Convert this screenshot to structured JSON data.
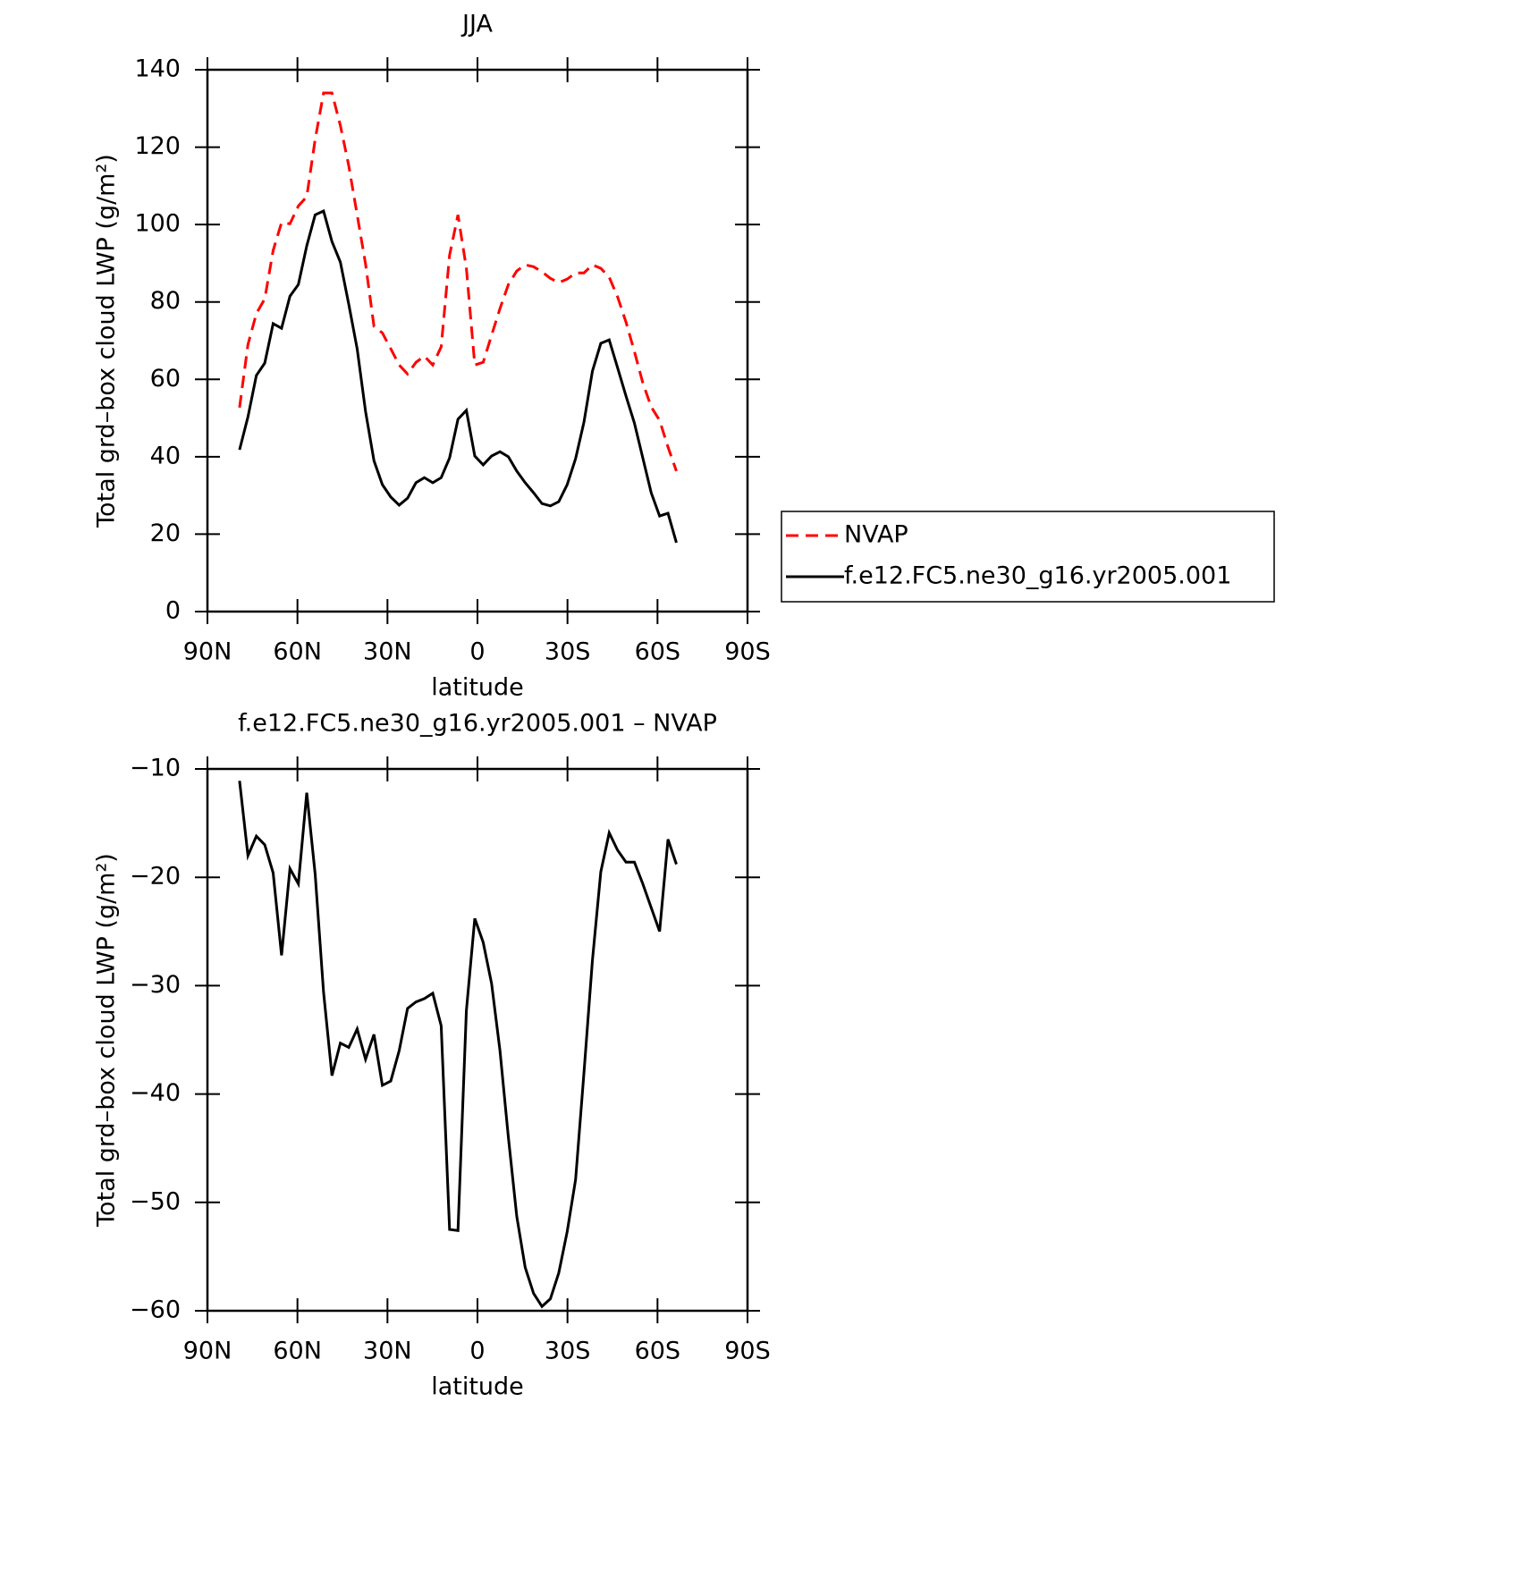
{
  "chart_data": [
    {
      "type": "line",
      "title": "JJA",
      "xlabel": "latitude",
      "ylabel": "Total grd–box cloud LWP (g/m²)",
      "x": [
        79.3,
        76.5,
        73.7,
        70.9,
        68.1,
        65.3,
        62.5,
        59.7,
        56.9,
        54.1,
        51.3,
        48.5,
        45.7,
        42.9,
        40.1,
        37.3,
        34.5,
        31.7,
        28.9,
        26.1,
        23.3,
        20.5,
        17.7,
        14.9,
        12.1,
        9.3,
        6.5,
        3.7,
        0.9,
        -1.9,
        -4.7,
        -7.5,
        -10.3,
        -13.1,
        -15.9,
        -18.7,
        -21.5,
        -24.3,
        -27.1,
        -29.9,
        -32.7,
        -35.5,
        -38.3,
        -41.1,
        -43.9,
        -46.7,
        -49.5,
        -52.3,
        -55.1,
        -57.9,
        -60.7,
        -63.5,
        -66.3
      ],
      "series": [
        {
          "name": "NVAP",
          "color": "#ff0000",
          "dash": true,
          "values": [
            52.7,
            69,
            77,
            80.8,
            93.3,
            100.5,
            100.2,
            104.8,
            107.2,
            122,
            134,
            134,
            125.6,
            115.2,
            102.5,
            89.8,
            73.7,
            72,
            67.9,
            63.7,
            61.4,
            64.4,
            66,
            63.7,
            68.4,
            92.1,
            102.5,
            88.7,
            63.7,
            64.4,
            71.4,
            78.3,
            84.5,
            88,
            89.6,
            89.1,
            87.8,
            86.1,
            85,
            85.9,
            87.5,
            87.5,
            89.6,
            88.7,
            86.4,
            81.3,
            74.8,
            67.2,
            59.1,
            52.9,
            49.4,
            42.5,
            36.3
          ]
        },
        {
          "name": "f.e12.FC5.ne30_g16.yr2005.001",
          "color": "#000000",
          "dash": false,
          "values": [
            41.8,
            50.3,
            61,
            64.2,
            74.4,
            73.2,
            81.5,
            84.5,
            94.5,
            102.5,
            103.5,
            95.6,
            90.3,
            79.4,
            67.9,
            51.7,
            39,
            32.8,
            29.6,
            27.5,
            29.3,
            33.3,
            34.6,
            33.3,
            34.6,
            39.7,
            49.7,
            52,
            40.2,
            37.9,
            40.2,
            41.3,
            40,
            36.3,
            33.3,
            30.7,
            27.9,
            27.3,
            28.4,
            32.8,
            39.5,
            49,
            62.1,
            69.3,
            70.2,
            63,
            55.7,
            48.7,
            39.7,
            30.7,
            24.7,
            25.4,
            17.8
          ]
        }
      ],
      "xlim": [
        90,
        -90
      ],
      "xticks": [
        {
          "value": 90,
          "label": "90N"
        },
        {
          "value": 60,
          "label": "60N"
        },
        {
          "value": 30,
          "label": "30N"
        },
        0,
        {
          "value": -30,
          "label": "30S"
        },
        {
          "value": -60,
          "label": "60S"
        },
        {
          "value": -90,
          "label": "90S"
        }
      ],
      "ylim": [
        0,
        140
      ],
      "yticks": [
        0,
        20,
        40,
        60,
        80,
        100,
        120,
        140
      ],
      "legend": "right"
    },
    {
      "type": "line",
      "title": "f.e12.FC5.ne30_g16.yr2005.001 – NVAP",
      "xlabel": "latitude",
      "ylabel": "Total grd–box cloud LWP (g/m²)",
      "x": [
        79.3,
        76.5,
        73.7,
        70.9,
        68.1,
        65.3,
        62.5,
        59.7,
        56.9,
        54.1,
        51.3,
        48.5,
        45.7,
        42.9,
        40.1,
        37.3,
        34.5,
        31.7,
        28.9,
        26.1,
        23.3,
        20.5,
        17.7,
        14.9,
        12.1,
        9.3,
        6.5,
        3.7,
        0.9,
        -1.9,
        -4.7,
        -7.5,
        -10.3,
        -13.1,
        -15.9,
        -18.7,
        -21.5,
        -24.3,
        -27.1,
        -29.9,
        -32.7,
        -35.5,
        -38.3,
        -41.1,
        -43.9,
        -46.7,
        -49.5,
        -52.3,
        -55.1,
        -57.9,
        -60.7,
        -63.5,
        -66.3
      ],
      "series": [
        {
          "name": null,
          "color": "#000000",
          "dash": false,
          "values": [
            -11.1,
            -18,
            -16.2,
            -17,
            -19.6,
            -27.2,
            -19.2,
            -20.6,
            -12.2,
            -19.7,
            -30.6,
            -38.3,
            -35.3,
            -35.7,
            -34,
            -36.8,
            -34.5,
            -39.2,
            -38.8,
            -36,
            -32.1,
            -31.5,
            -31.2,
            -30.7,
            -33.7,
            -52.5,
            -52.6,
            -32.3,
            -23.8,
            -26,
            -29.8,
            -36,
            -44,
            -51.3,
            -56,
            -58.4,
            -59.6,
            -58.9,
            -56.5,
            -52.7,
            -47.9,
            -38,
            -27.7,
            -19.5,
            -15.9,
            -17.5,
            -18.6,
            -18.6,
            -20.6,
            -22.8,
            -25,
            -16.5,
            -18.8
          ]
        }
      ],
      "xlim": [
        90,
        -90
      ],
      "xticks": [
        {
          "value": 90,
          "label": "90N"
        },
        {
          "value": 60,
          "label": "60N"
        },
        {
          "value": 30,
          "label": "30N"
        },
        0,
        {
          "value": -30,
          "label": "30S"
        },
        {
          "value": -60,
          "label": "60S"
        },
        {
          "value": -90,
          "label": "90S"
        }
      ],
      "ylim": [
        -60,
        -10
      ],
      "yticks": [
        {
          "value": -60,
          "label": "−60"
        },
        {
          "value": -50,
          "label": "−50"
        },
        {
          "value": -40,
          "label": "−40"
        },
        {
          "value": -30,
          "label": "−30"
        },
        {
          "value": -20,
          "label": "−20"
        },
        {
          "value": -10,
          "label": "−10"
        }
      ]
    }
  ]
}
